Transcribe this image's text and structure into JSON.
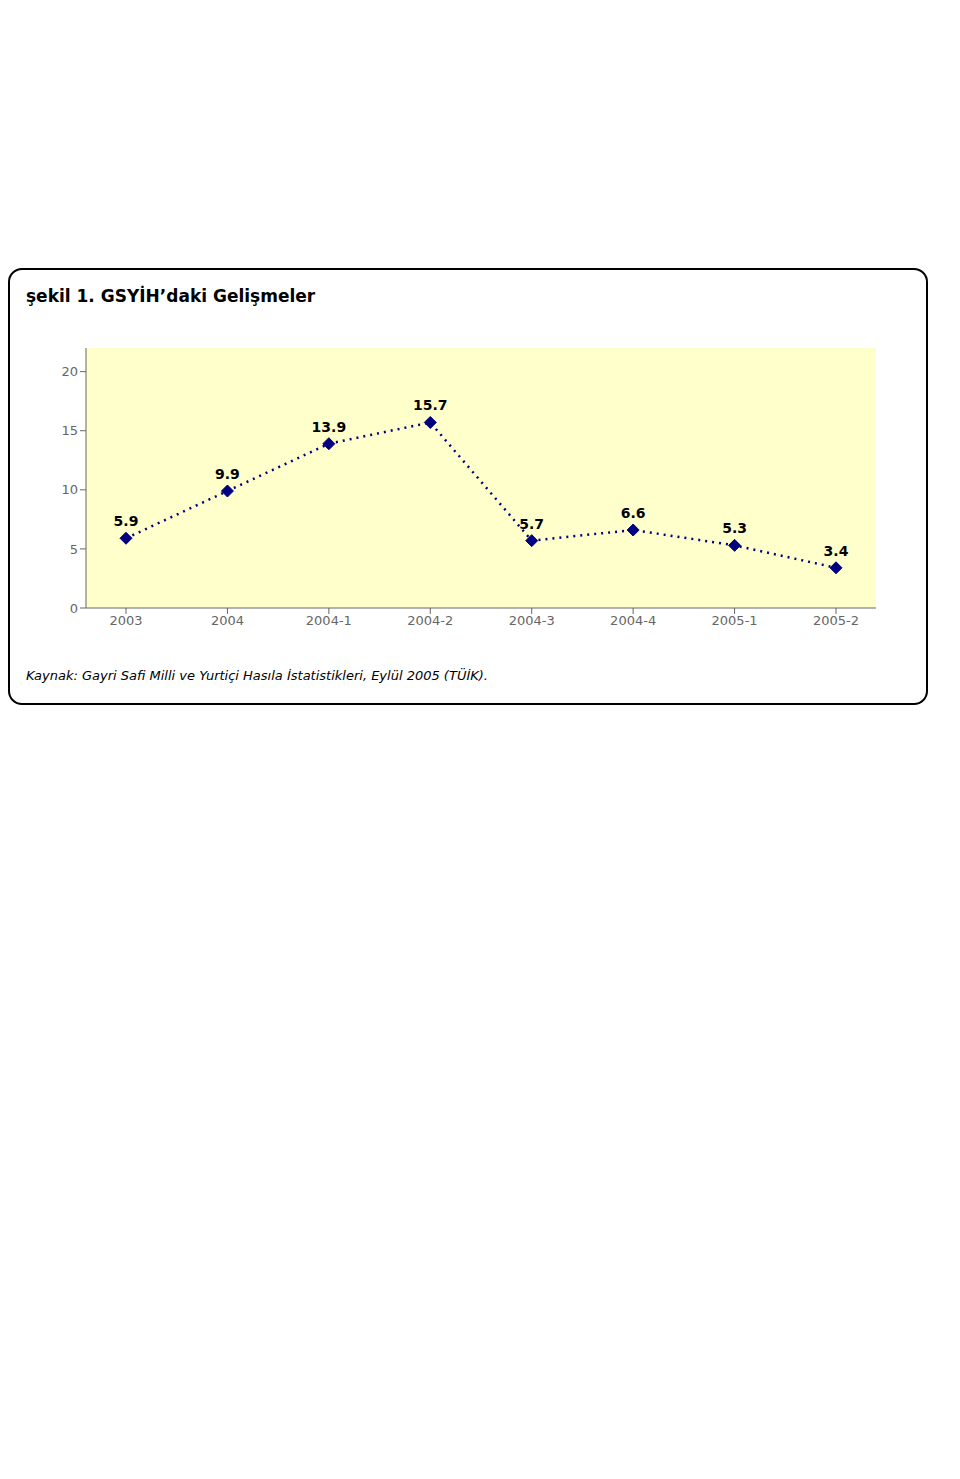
{
  "chart_data": {
    "type": "line",
    "title": "şekil 1. GSYİH’daki Gelişmeler",
    "annotations": [
      "Kaynak: Gayri Safi Milli ve Yurtiçi Hasıla İstatistikleri, Eylül 2005 (TÜİK)."
    ],
    "categories": [
      "2003",
      "2004",
      "2004-1",
      "2004-2",
      "2004-3",
      "2004-4",
      "2005-1",
      "2005-2"
    ],
    "values": [
      5.9,
      9.9,
      13.9,
      15.7,
      5.7,
      6.6,
      5.3,
      3.4
    ],
    "color": "#000080",
    "marker": "diamond",
    "line_style": "dotted",
    "ylim": [
      0,
      22
    ],
    "yticks": [
      0,
      5,
      10,
      15,
      20
    ],
    "grid": false,
    "data_labels": true
  }
}
